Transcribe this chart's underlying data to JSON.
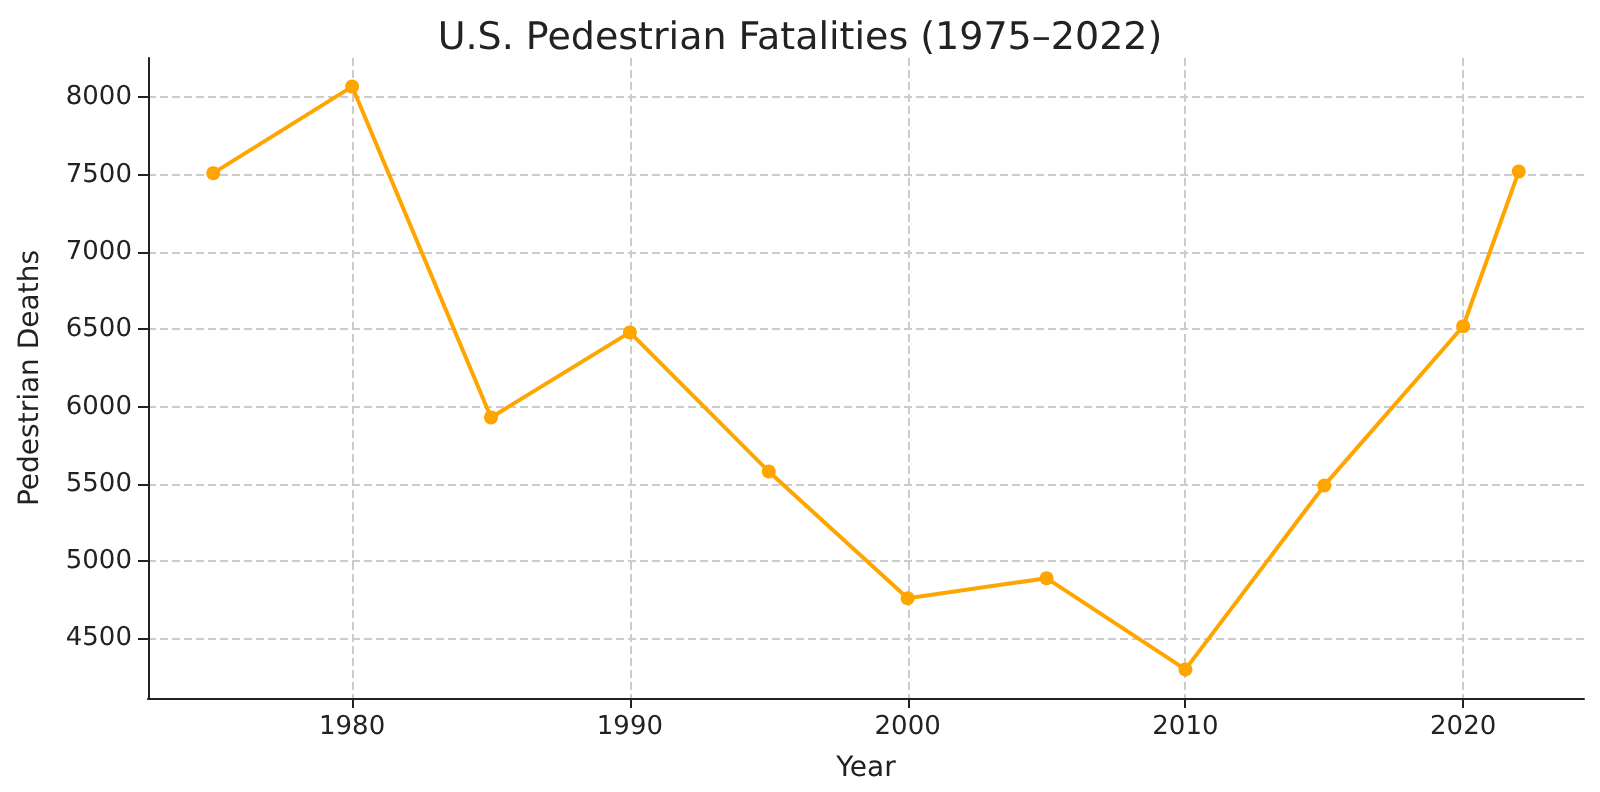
{
  "chart_data": {
    "type": "line",
    "title": "U.S. Pedestrian Fatalities (1975–2022)",
    "xlabel": "Year",
    "ylabel": "Pedestrian Deaths",
    "x": [
      1975,
      1980,
      1985,
      1990,
      1995,
      2000,
      2005,
      2010,
      2015,
      2020,
      2022
    ],
    "series": [
      {
        "color": "#ffa500",
        "values": [
          7510,
          8070,
          5930,
          6480,
          5580,
          4760,
          4890,
          4300,
          5490,
          6520,
          7520
        ]
      }
    ],
    "xlim": [
      1972.65,
      2024.35
    ],
    "xticks": [
      1980,
      1990,
      2000,
      2010,
      2020
    ],
    "ylim": [
      4115,
      8255
    ],
    "yticks": [
      4500,
      5000,
      5500,
      6000,
      6500,
      7000,
      7500,
      8000
    ],
    "grid": true,
    "marker": "circle",
    "line_style": "solid"
  }
}
